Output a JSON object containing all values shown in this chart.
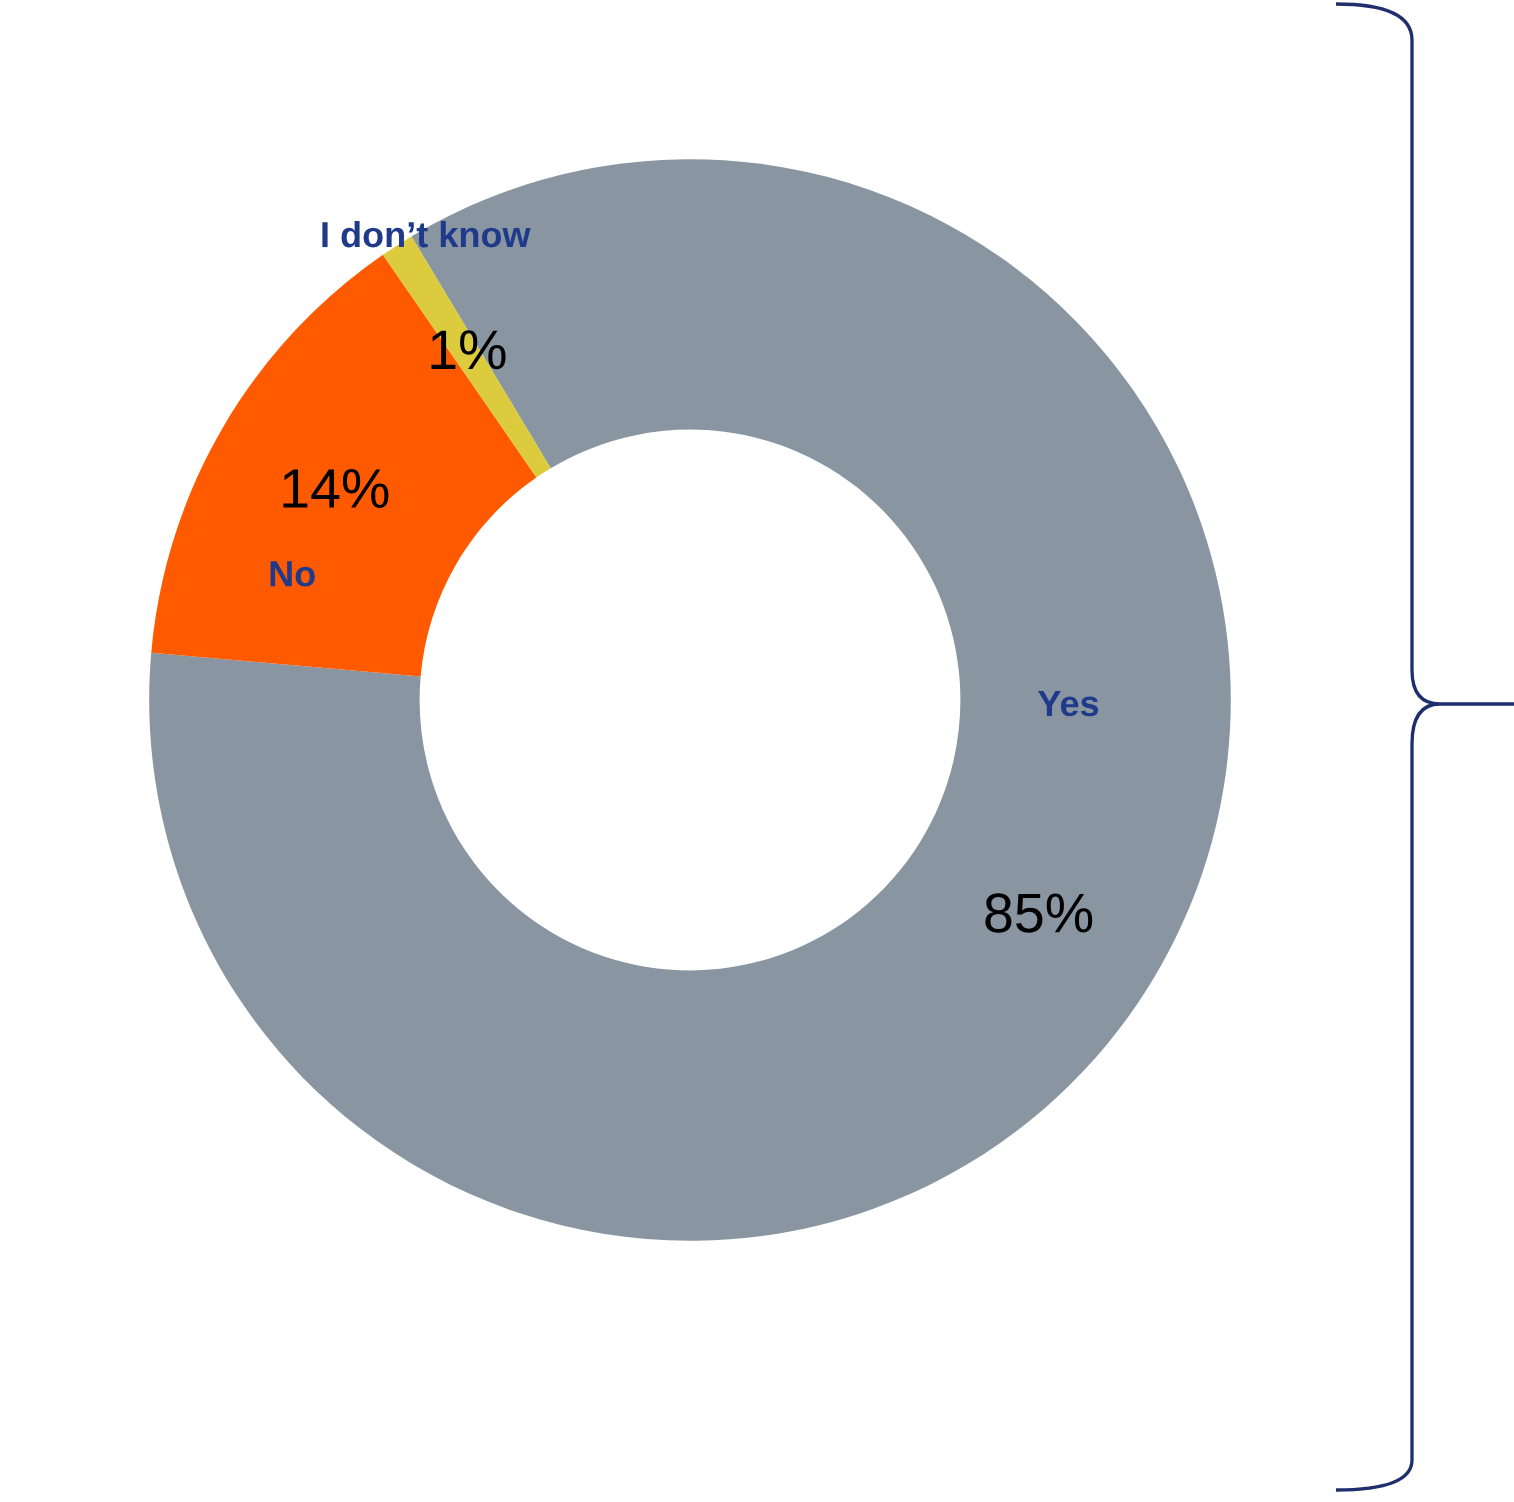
{
  "chart_data": {
    "type": "donut",
    "categories": [
      "Yes",
      "No",
      "I don’t know"
    ],
    "values": [
      85,
      14,
      1
    ],
    "value_labels": [
      "85%",
      "14%",
      "1%"
    ],
    "colors": [
      "#8995a0",
      "#ff5a00",
      "#dccb3c"
    ],
    "legend": false
  }
}
